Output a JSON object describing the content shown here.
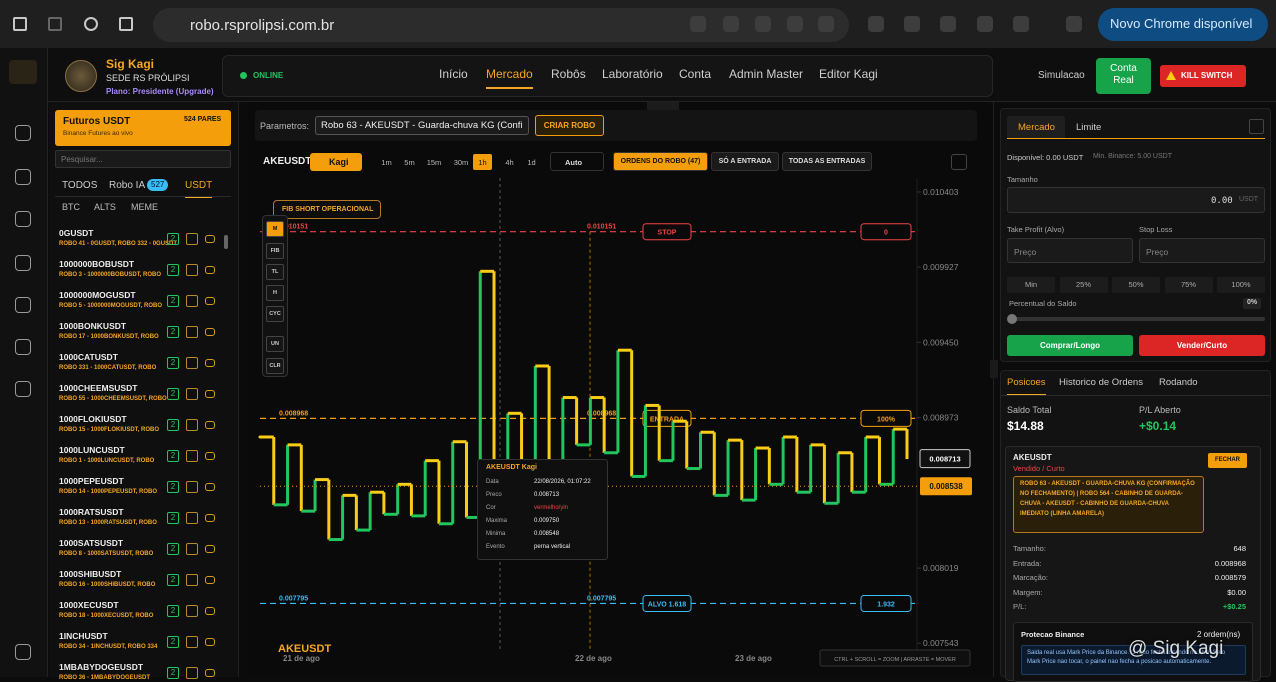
{
  "browser": {
    "url": "robo.rsprolipsi.com.br",
    "update_button": "Novo Chrome disponível"
  },
  "header": {
    "brand": "Sig Kagi",
    "subtitle": "SEDE RS PRÓLIPSI",
    "plan": "Plano: Presidente (Upgrade)",
    "status": "ONLINE",
    "nav": [
      "Início",
      "Mercado",
      "Robôs",
      "Laboratório",
      "Conta",
      "Admin Master",
      "Editor Kagi"
    ],
    "active_nav": 1,
    "simulacao": "Simulacao",
    "conta_real": "Conta Real",
    "kill_switch": "KILL SWITCH"
  },
  "left_panel": {
    "title": "Futuros USDT",
    "count": "524 PARES",
    "subtitle": "Binance Futures ao vivo",
    "search": "Pesquisar...",
    "tabs": [
      "TODOS",
      "Robo IA",
      "USDT"
    ],
    "robo_ia_count": 527,
    "subtabs": [
      "BTC",
      "ALTS",
      "MEME"
    ],
    "pairs": [
      {
        "symbol": "0GUSDT",
        "robots": "ROBO 41 - 0GUSDT, ROBO 332 - 0GUSDT",
        "badge": 2
      },
      {
        "symbol": "1000000BOBUSDT",
        "robots": "ROBO 3 - 1000000BOBUSDT, ROBO",
        "badge": 2
      },
      {
        "symbol": "1000000MOGUSDT",
        "robots": "ROBO 5 - 1000000MOGUSDT, ROBO",
        "badge": 2
      },
      {
        "symbol": "1000BONKUSDT",
        "robots": "ROBO 17 - 1000BONKUSDT, ROBO",
        "badge": 2
      },
      {
        "symbol": "1000CATUSDT",
        "robots": "ROBO 331 - 1000CATUSDT, ROBO",
        "badge": 2
      },
      {
        "symbol": "1000CHEEMSUSDT",
        "robots": "ROBO 55 - 1000CHEEMSUSDT, ROBO",
        "badge": 2
      },
      {
        "symbol": "1000FLOKIUSDT",
        "robots": "ROBO 15 - 1000FLOKIUSDT, ROBO",
        "badge": 2
      },
      {
        "symbol": "1000LUNCUSDT",
        "robots": "ROBO 1 - 1000LUNCUSDT, ROBO",
        "badge": 2
      },
      {
        "symbol": "1000PEPEUSDT",
        "robots": "ROBO 14 - 1000PEPEUSDT, ROBO",
        "badge": 2
      },
      {
        "symbol": "1000RATSUSDT",
        "robots": "ROBO 13 - 1000RATSUSDT, ROBO",
        "badge": 2
      },
      {
        "symbol": "1000SATSUSDT",
        "robots": "ROBO 8 - 1000SATSUSDT, ROBO",
        "badge": 2
      },
      {
        "symbol": "1000SHIBUSDT",
        "robots": "ROBO 16 - 1000SHIBUSDT, ROBO",
        "badge": 2
      },
      {
        "symbol": "1000XECUSDT",
        "robots": "ROBO 18 - 1000XECUSDT, ROBO",
        "badge": 2
      },
      {
        "symbol": "1INCHUSDT",
        "robots": "ROBO 34 - 1INCHUSDT, ROBO 334",
        "badge": 2
      },
      {
        "symbol": "1MBABYDOGEUSDT",
        "robots": "ROBO 36 - 1MBABYDOGEUSDT",
        "badge": 2
      }
    ]
  },
  "toolbar": {
    "params_label": "Parametros:",
    "robot_select": "Robo 63 - AKEUSDT - Guarda-chuva KG (Confi",
    "create_button": "CRIAR ROBO",
    "symbol": "AKEUSDT",
    "chart_type": "Kagi",
    "timeframes": [
      "1m",
      "5m",
      "15m",
      "30m",
      "1h",
      "4h",
      "1d"
    ],
    "active_timeframe": 4,
    "auto": "Auto",
    "order_tabs": [
      "ORDENS DO ROBO (47)",
      "SÓ A ENTRADA",
      "TODAS AS ENTRADAS"
    ],
    "active_order_tab": 0,
    "tools": [
      "M",
      "FIB",
      "TL",
      "H",
      "CYC",
      "UN",
      "CLR"
    ],
    "fib_label": "FIB SHORT OPERACIONAL"
  },
  "chart_data": {
    "type": "kagi",
    "watermark": "AKEUSDT",
    "hint": "CTRL + SCROLL = ZOOM | ARRASTE = MOVER",
    "x_labels": [
      "21 de ago",
      "22 de ago",
      "23 de ago"
    ],
    "ylim": [
      0.0075,
      0.010447
    ],
    "yticks": [
      0.010403,
      0.009927,
      {
        "value": 0.00945,
        "label": "0.009450"
      },
      0.008973,
      0.008019,
      0.007543
    ],
    "up_color": "#22c55e",
    "down_color": "#facc15",
    "values": [
      0.00885,
      0.00842,
      0.0088,
      0.00838,
      0.00858,
      0.0082,
      0.00848,
      0.00826,
      0.0085,
      0.00836,
      0.00855,
      0.00835,
      0.0087,
      0.0083,
      0.00882,
      0.00834,
      0.0099,
      0.0085,
      0.009,
      0.00838,
      0.0093,
      0.00855,
      0.0091,
      0.0088,
      0.0091,
      0.00875,
      0.0094,
      0.0086,
      0.00905,
      0.0087,
      0.00895,
      0.00865,
      0.00888,
      0.00848,
      0.00883,
      0.00845,
      0.00878,
      0.00855,
      0.00885,
      0.0085,
      0.0088,
      0.00843,
      0.00875,
      0.0085,
      0.00885,
      0.00855,
      0.0089,
      0.00871
    ],
    "levels": [
      {
        "name": "STOP",
        "value": 0.010151,
        "color": "#ef4444",
        "right_label": "0"
      },
      {
        "name": "ENTRADA",
        "value": 0.008968,
        "color": "#f59e0b",
        "right_label": "100%"
      },
      {
        "name": "ALVO 1.618",
        "value": 0.007795,
        "color": "#38bdf8",
        "right_label": "1.932"
      }
    ],
    "cursor_price": 0.008713,
    "last_price": 0.008538,
    "tooltip": {
      "title": "AKEUSDT Kagi",
      "rows": [
        [
          "Data",
          "22/08/2026, 01:07:22"
        ],
        [
          "Preco",
          "0.008713"
        ],
        [
          "Cor",
          "vermelho/yin"
        ],
        [
          "Maxima",
          "0.009750"
        ],
        [
          "Minima",
          "0.008548"
        ],
        [
          "Evento",
          "perna vertical"
        ]
      ]
    }
  },
  "order_panel": {
    "tabs": [
      "Mercado",
      "Limite"
    ],
    "available": "Disponível: 0.00 USDT",
    "min": "Min. Binance: 5.00 USDT",
    "size_label": "Tamanho",
    "size_value": "0.00",
    "size_unit": "USDT",
    "tp_label": "Take Profit (Alvo)",
    "sl_label": "Stop Loss",
    "price_placeholder": "Preço",
    "percents": [
      "Min",
      "25%",
      "50%",
      "75%",
      "100%"
    ],
    "balance_pct_label": "Percentual do Saldo",
    "balance_pct": "0%",
    "buy": "Comprar/Longo",
    "sell": "Vender/Curto"
  },
  "positions": {
    "tabs": [
      "Posicoes",
      "Historico de Ordens",
      "Rodando"
    ],
    "balance_label": "Saldo Total",
    "balance": "$14.88",
    "pl_label": "P/L Aberto",
    "pl": "+$0.14",
    "card": {
      "symbol": "AKEUSDT",
      "side": "Vendido / Curto",
      "close": "FECHAR",
      "description": "ROBO 63 - AKEUSDT - GUARDA-CHUVA KG (CONFIRMAÇÃO NO FECHAMENTO) | ROBO 564 - CABINHO DE GUARDA-CHUVA - AKEUSDT - CABINHO DE GUARDA-CHUVA IMEDIATO (LINHA AMARELA)",
      "rows": [
        [
          "Tamanho:",
          "648"
        ],
        [
          "Entrada:",
          "0.008968"
        ],
        [
          "Marcação:",
          "0.008579"
        ],
        [
          "Margem:",
          "$0.00"
        ],
        [
          "P/L:",
          "+$0.25"
        ]
      ],
      "protection_title": "Protecao Binance",
      "protection_count": "2 ordem(ns)",
      "protection_text": "Saida real usa Mark Price da Binance. O robo fecha tocando no alvo. Se o Mark Price nao tocar, o painel nao fecha a posicao automaticamente."
    }
  },
  "watermark": "@ Sig Kagi"
}
